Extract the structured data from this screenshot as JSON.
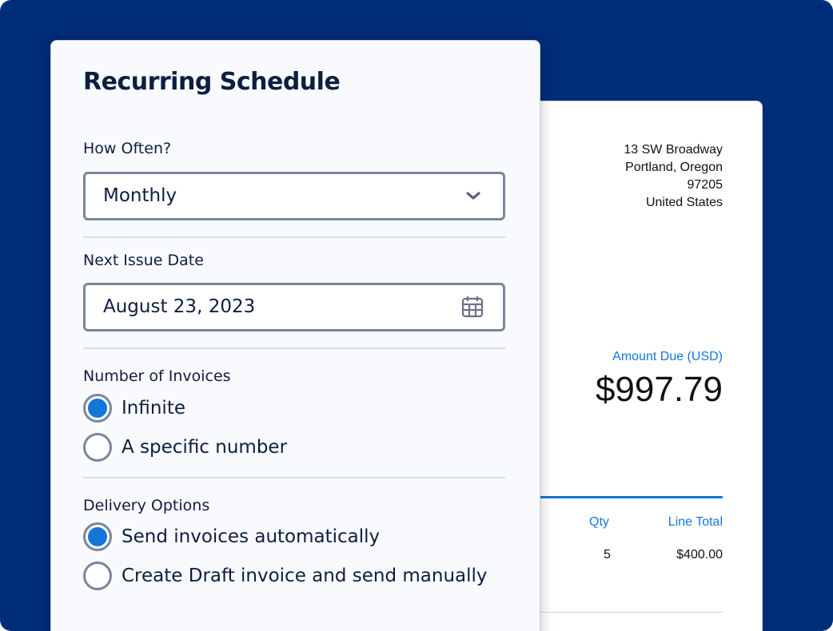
{
  "invoice": {
    "address": [
      "13 SW Broadway",
      "Portland, Oregon",
      "97205",
      "United States"
    ],
    "amount_due_label": "Amount Due (USD)",
    "amount_due": "$997.79",
    "columns": {
      "qty": "Qty",
      "line_total": "Line Total"
    },
    "row": {
      "qty": "5",
      "line_total": "$400.00"
    }
  },
  "schedule": {
    "title": "Recurring Schedule",
    "how_often_label": "How Often?",
    "how_often_value": "Monthly",
    "next_issue_label": "Next Issue Date",
    "next_issue_value": "August 23, 2023",
    "number_label": "Number of Invoices",
    "number_options": [
      {
        "label": "Infinite",
        "selected": true
      },
      {
        "label": "A specific number",
        "selected": false
      }
    ],
    "delivery_label": "Delivery Options",
    "delivery_options": [
      {
        "label": "Send invoices automatically",
        "selected": true
      },
      {
        "label": "Create Draft invoice and send manually",
        "selected": false
      }
    ]
  },
  "colors": {
    "background": "#002d7a",
    "accent": "#1476d8"
  }
}
